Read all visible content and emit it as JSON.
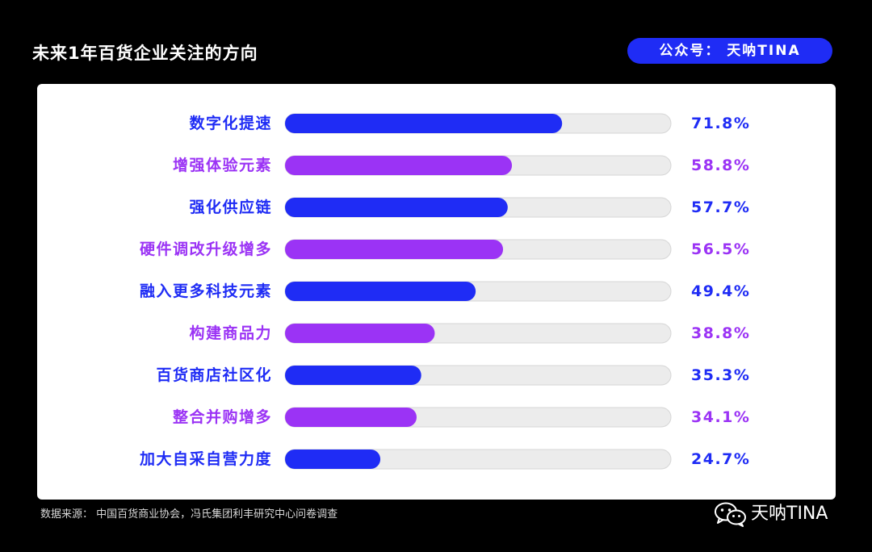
{
  "header": {
    "title": "未来1年百货企业关注的方向",
    "badge": "公众号： 天呐TINA"
  },
  "footer": {
    "source": "数据来源： 中国百货商业协会，冯氏集团利丰研究中心问卷调查",
    "brand": "天呐TINA",
    "brand_icon": "wechat-icon"
  },
  "colors": {
    "blue": "#1f2cf5",
    "purple": "#9b33f5",
    "track": "#ececec",
    "track_border": "#d6d6d6"
  },
  "chart_data": {
    "type": "bar",
    "orientation": "horizontal",
    "title": "未来1年百货企业关注的方向",
    "xlim": [
      0,
      100
    ],
    "unit": "%",
    "grid": false,
    "legend": "none",
    "categories": [
      "数字化提速",
      "增强体验元素",
      "强化供应链",
      "硬件调改升级增多",
      "融入更多科技元素",
      "构建商品力",
      "百货商店社区化",
      "整合并购增多",
      "加大自采自营力度"
    ],
    "values": [
      71.8,
      58.8,
      57.7,
      56.5,
      49.4,
      38.8,
      35.3,
      34.1,
      24.7
    ],
    "labels": [
      "71.8%",
      "58.8%",
      "57.7%",
      "56.5%",
      "49.4%",
      "38.8%",
      "35.3%",
      "34.1%",
      "24.7%"
    ],
    "bar_colors": [
      "#1f2cf5",
      "#9b33f5",
      "#1f2cf5",
      "#9b33f5",
      "#1f2cf5",
      "#9b33f5",
      "#1f2cf5",
      "#9b33f5",
      "#1f2cf5"
    ]
  }
}
